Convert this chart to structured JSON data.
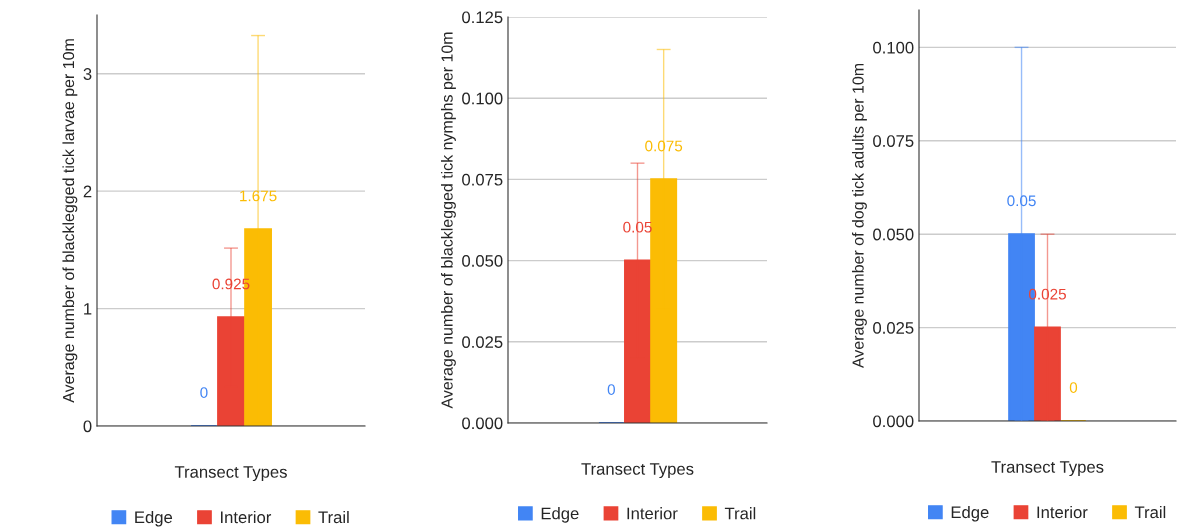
{
  "chart_data": [
    {
      "type": "bar",
      "xlabel": "Transect Types",
      "ylabel": "Average number of blacklegged tick larvae per 10m",
      "categories": [
        null
      ],
      "ylim": [
        0,
        3.5
      ],
      "yticks": [
        0,
        1,
        2,
        3
      ],
      "grid": "y",
      "legend": "bottom",
      "data_labels": true,
      "series": [
        {
          "name": "Edge",
          "color": "#4285f4",
          "values": [
            0
          ]
        },
        {
          "name": "Interior",
          "color": "#ea4335",
          "values": [
            0.925
          ],
          "errors": [
            0.59
          ]
        },
        {
          "name": "Trail",
          "color": "#fbbc04",
          "values": [
            1.675
          ],
          "errors": [
            1.65
          ]
        }
      ]
    },
    {
      "type": "bar",
      "xlabel": "Transect Types",
      "ylabel": "Average number of blacklegged tick nymphs per 10m",
      "categories": [
        null
      ],
      "ylim": [
        0,
        0.125
      ],
      "yticks": [
        {
          "value": 0,
          "label": "0.000"
        },
        {
          "value": 0.025,
          "label": "0.025"
        },
        {
          "value": 0.05,
          "label": "0.050"
        },
        {
          "value": 0.075,
          "label": "0.075"
        },
        {
          "value": 0.1,
          "label": "0.100"
        },
        {
          "value": 0.125,
          "label": "0.125"
        }
      ],
      "grid": "y",
      "legend": "bottom",
      "data_labels": true,
      "series": [
        {
          "name": "Edge",
          "color": "#4285f4",
          "values": [
            0
          ]
        },
        {
          "name": "Interior",
          "color": "#ea4335",
          "values": [
            0.05
          ],
          "errors": [
            0.03
          ]
        },
        {
          "name": "Trail",
          "color": "#fbbc04",
          "values": [
            0.075
          ],
          "errors": [
            0.04
          ]
        }
      ]
    },
    {
      "type": "bar",
      "xlabel": "Transect Types",
      "ylabel": "Average number of dog tick adults per 10m",
      "categories": [
        null
      ],
      "ylim": [
        0,
        0.11
      ],
      "yticks": [
        {
          "value": 0,
          "label": "0.000"
        },
        {
          "value": 0.025,
          "label": "0.025"
        },
        {
          "value": 0.05,
          "label": "0.050"
        },
        {
          "value": 0.075,
          "label": "0.075"
        },
        {
          "value": 0.1,
          "label": "0.100"
        }
      ],
      "grid": "y",
      "legend": "bottom",
      "data_labels": true,
      "series": [
        {
          "name": "Edge",
          "color": "#4285f4",
          "values": [
            0.05
          ],
          "errors": [
            0.05
          ]
        },
        {
          "name": "Interior",
          "color": "#ea4335",
          "values": [
            0.025
          ],
          "errors": [
            0.025
          ]
        },
        {
          "name": "Trail",
          "color": "#fbbc04",
          "values": [
            0
          ]
        }
      ]
    }
  ]
}
